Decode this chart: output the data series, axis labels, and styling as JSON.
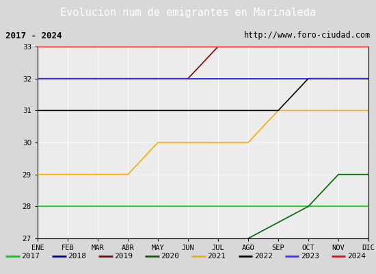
{
  "title": "Evolucion num de emigrantes en Marinaleda",
  "subtitle_left": "2017 - 2024",
  "subtitle_right": "http://www.foro-ciudad.com",
  "months": [
    "ENE",
    "FEB",
    "MAR",
    "ABR",
    "MAY",
    "JUN",
    "JUL",
    "AGO",
    "SEP",
    "OCT",
    "NOV",
    "DIC"
  ],
  "ylim": [
    27.0,
    33.0
  ],
  "yticks": [
    27.0,
    28.0,
    29.0,
    30.0,
    31.0,
    32.0,
    33.0
  ],
  "series": {
    "2017": {
      "color": "#00cc00",
      "data": [
        [
          1,
          28.0
        ],
        [
          12,
          28.0
        ]
      ]
    },
    "2018": {
      "color": "#000099",
      "data": [
        [
          1,
          32.0
        ],
        [
          12,
          32.0
        ]
      ]
    },
    "2019": {
      "color": "#880000",
      "data": [
        [
          1,
          32.0
        ],
        [
          6,
          32.0
        ],
        [
          7,
          33.0
        ],
        [
          12,
          33.0
        ]
      ]
    },
    "2020": {
      "color": "#006600",
      "data": [
        [
          8,
          27.0
        ],
        [
          10,
          28.0
        ],
        [
          11,
          29.0
        ],
        [
          12,
          29.0
        ]
      ]
    },
    "2021": {
      "color": "#ffaa00",
      "data": [
        [
          1,
          29.0
        ],
        [
          4,
          29.0
        ],
        [
          5,
          30.0
        ],
        [
          8,
          30.0
        ],
        [
          9,
          31.0
        ],
        [
          12,
          31.0
        ]
      ]
    },
    "2022": {
      "color": "#000000",
      "data": [
        [
          1,
          31.0
        ],
        [
          9,
          31.0
        ],
        [
          10,
          32.0
        ],
        [
          12,
          32.0
        ]
      ]
    },
    "2023": {
      "color": "#3333ff",
      "data": [
        [
          1,
          32.0
        ],
        [
          12,
          32.0
        ]
      ]
    },
    "2024": {
      "color": "#ff0000",
      "data": [
        [
          1,
          33.0
        ],
        [
          12,
          33.0
        ]
      ]
    }
  },
  "legend_order": [
    "2017",
    "2018",
    "2019",
    "2020",
    "2021",
    "2022",
    "2023",
    "2024"
  ],
  "fig_bg_color": "#d8d8d8",
  "plot_bg_color": "#ececec",
  "title_bg_color": "#4466bb",
  "title_text_color": "#ffffff",
  "subtitle_bg_color": "#f4f4f4",
  "legend_bg_color": "#f4f4f4",
  "grid_color": "#ffffff",
  "border_color": "#000000",
  "legend_border_color": "#6688cc"
}
